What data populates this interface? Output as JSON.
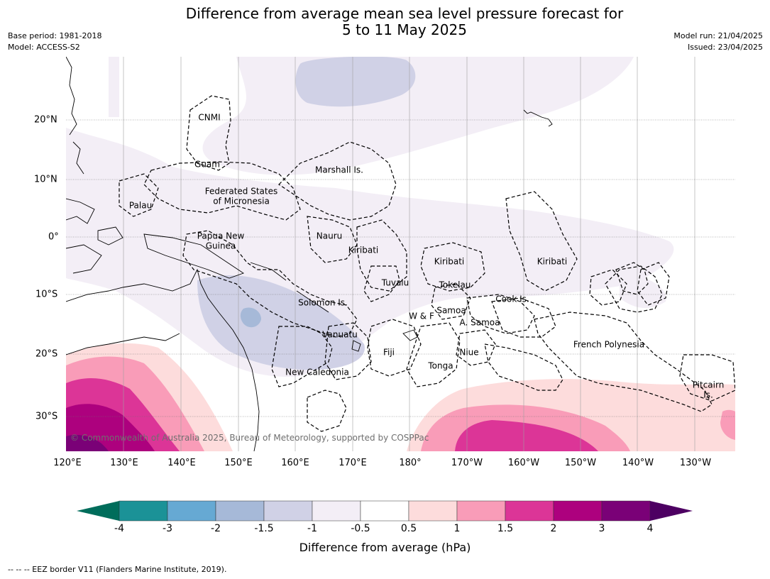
{
  "header": {
    "title_line1": "Difference from average mean sea level pressure forecast for",
    "title_line2": "5 to 11 May 2025",
    "base_period": "Base period: 1981-2018",
    "model": "Model: ACCESS-S2",
    "model_run": "Model run: 21/04/2025",
    "issued": "Issued: 23/04/2025"
  },
  "map": {
    "lon_ticks": [
      "120°E",
      "130°E",
      "140°E",
      "150°E",
      "160°E",
      "170°E",
      "180°",
      "170°W",
      "160°W",
      "150°W",
      "140°W",
      "130°W"
    ],
    "lat_ticks": [
      "20°N",
      "10°N",
      "0°",
      "10°S",
      "20°S",
      "30°S"
    ],
    "region_labels": [
      {
        "text": "CNMI"
      },
      {
        "text": "Guam"
      },
      {
        "text": "Marshall Is."
      },
      {
        "text": "Federated States"
      },
      {
        "text": "of Micronesia"
      },
      {
        "text": "Palau"
      },
      {
        "text": "Papua New"
      },
      {
        "text": "Guinea"
      },
      {
        "text": "Nauru"
      },
      {
        "text": "Kiribati"
      },
      {
        "text": "Kiribati"
      },
      {
        "text": "Kiribati"
      },
      {
        "text": "Tuvalu"
      },
      {
        "text": "Tokelau"
      },
      {
        "text": "Cook Is."
      },
      {
        "text": "Solomon Is."
      },
      {
        "text": "Samoa"
      },
      {
        "text": "W & F"
      },
      {
        "text": "A. Samoa"
      },
      {
        "text": "Vanuatu"
      },
      {
        "text": "Fiji"
      },
      {
        "text": "Niue"
      },
      {
        "text": "Tonga"
      },
      {
        "text": "French Polynesia"
      },
      {
        "text": "New Caledonia"
      },
      {
        "text": "Pitcairn"
      },
      {
        "text": "Is."
      }
    ],
    "copyright": "© Commonwealth of Australia 2025, Bureau of Meteorology, supported by COSPPac"
  },
  "colorbar": {
    "title": "Difference from average (hPa)",
    "tick_labels": [
      "-4",
      "-3",
      "-2",
      "-1.5",
      "-1",
      "-0.5",
      "0.5",
      "1",
      "1.5",
      "2",
      "3",
      "4"
    ],
    "colors": {
      "below_min": "#006d5b",
      "bins": [
        "#1b9297",
        "#66a9d3",
        "#a6b9d8",
        "#d0d1e6",
        "#f3eef6",
        "#ffffff",
        "#fddcdc",
        "#f99cb8",
        "#dc3597",
        "#ad017e",
        "#7a0177"
      ],
      "above_max": "#4d0062"
    }
  },
  "footnote": "-- -- -- EEZ border V11 (Flanders Marine Institute, 2019)."
}
